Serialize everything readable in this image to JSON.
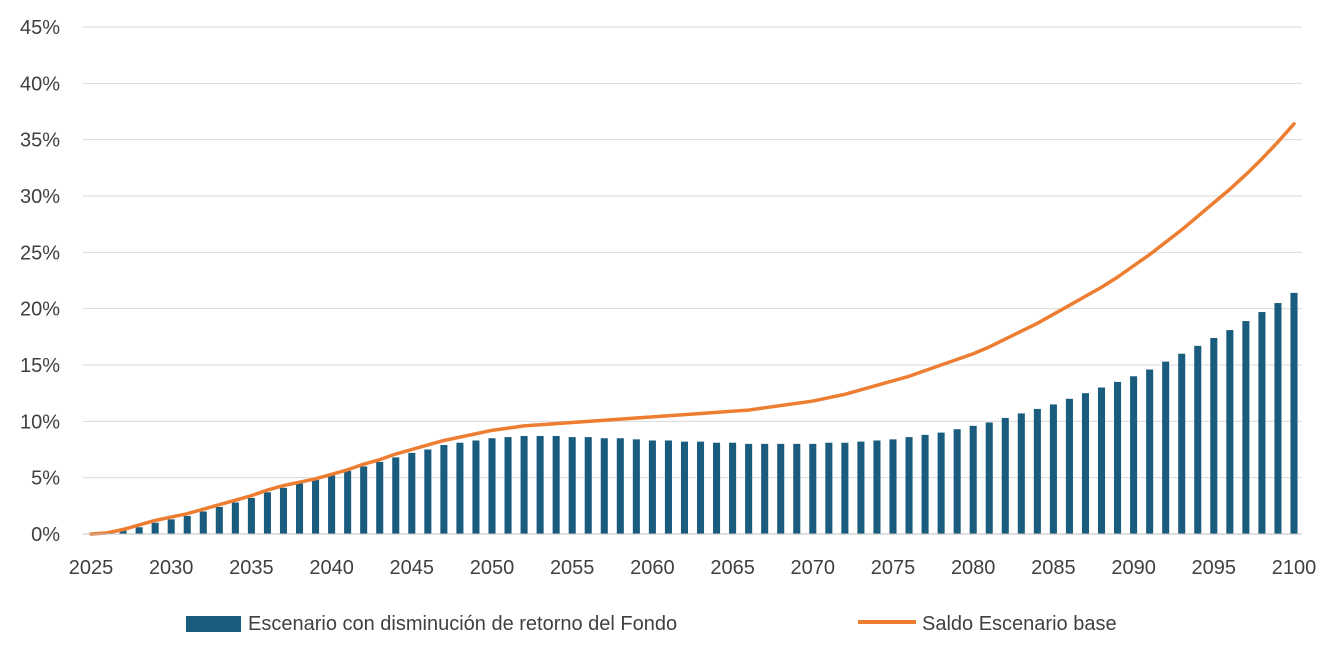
{
  "chart_data": {
    "type": "bar",
    "title": "",
    "xlabel": "",
    "ylabel": "",
    "ylim": [
      0,
      45
    ],
    "grid": true,
    "legend_position": "bottom",
    "x_tick_labels": [
      "2025",
      "2030",
      "2035",
      "2040",
      "2045",
      "2050",
      "2055",
      "2060",
      "2065",
      "2070",
      "2075",
      "2080",
      "2085",
      "2090",
      "2095",
      "2100"
    ],
    "y_tick_labels": [
      "0%",
      "5%",
      "10%",
      "15%",
      "20%",
      "25%",
      "30%",
      "35%",
      "40%",
      "45%"
    ],
    "years": [
      2025,
      2026,
      2027,
      2028,
      2029,
      2030,
      2031,
      2032,
      2033,
      2034,
      2035,
      2036,
      2037,
      2038,
      2039,
      2040,
      2041,
      2042,
      2043,
      2044,
      2045,
      2046,
      2047,
      2048,
      2049,
      2050,
      2051,
      2052,
      2053,
      2054,
      2055,
      2056,
      2057,
      2058,
      2059,
      2060,
      2061,
      2062,
      2063,
      2064,
      2065,
      2066,
      2067,
      2068,
      2069,
      2070,
      2071,
      2072,
      2073,
      2074,
      2075,
      2076,
      2077,
      2078,
      2079,
      2080,
      2081,
      2082,
      2083,
      2084,
      2085,
      2086,
      2087,
      2088,
      2089,
      2090,
      2091,
      2092,
      2093,
      2094,
      2095,
      2096,
      2097,
      2098,
      2099,
      2100
    ],
    "series": [
      {
        "name": "Escenario con disminución de retorno del Fondo",
        "type": "bar",
        "color": "#1a5c7e",
        "values": [
          0.0,
          0.1,
          0.3,
          0.6,
          1.0,
          1.3,
          1.6,
          2.0,
          2.4,
          2.8,
          3.2,
          3.7,
          4.1,
          4.5,
          4.8,
          5.2,
          5.6,
          6.0,
          6.4,
          6.8,
          7.2,
          7.5,
          7.9,
          8.1,
          8.3,
          8.5,
          8.6,
          8.7,
          8.7,
          8.7,
          8.6,
          8.6,
          8.5,
          8.5,
          8.4,
          8.3,
          8.3,
          8.2,
          8.2,
          8.1,
          8.1,
          8.0,
          8.0,
          8.0,
          8.0,
          8.0,
          8.1,
          8.1,
          8.2,
          8.3,
          8.4,
          8.6,
          8.8,
          9.0,
          9.3,
          9.6,
          9.9,
          10.3,
          10.7,
          11.1,
          11.5,
          12.0,
          12.5,
          13.0,
          13.5,
          14.0,
          14.6,
          15.3,
          16.0,
          16.7,
          17.4,
          18.1,
          18.9,
          19.7,
          20.5,
          21.4
        ]
      },
      {
        "name": "Saldo Escenario base",
        "type": "line",
        "color": "#ed7d31",
        "values": [
          0.0,
          0.1,
          0.4,
          0.8,
          1.2,
          1.5,
          1.8,
          2.2,
          2.6,
          3.0,
          3.4,
          3.9,
          4.3,
          4.6,
          4.9,
          5.3,
          5.7,
          6.2,
          6.6,
          7.1,
          7.5,
          7.9,
          8.3,
          8.6,
          8.9,
          9.2,
          9.4,
          9.6,
          9.7,
          9.8,
          9.9,
          10.0,
          10.1,
          10.2,
          10.3,
          10.4,
          10.5,
          10.6,
          10.7,
          10.8,
          10.9,
          11.0,
          11.2,
          11.4,
          11.6,
          11.8,
          12.1,
          12.4,
          12.8,
          13.2,
          13.6,
          14.0,
          14.5,
          15.0,
          15.5,
          16.0,
          16.6,
          17.3,
          18.0,
          18.7,
          19.5,
          20.3,
          21.1,
          21.9,
          22.8,
          23.8,
          24.8,
          25.9,
          27.0,
          28.2,
          29.4,
          30.6,
          31.9,
          33.3,
          34.8,
          36.4
        ]
      }
    ]
  }
}
